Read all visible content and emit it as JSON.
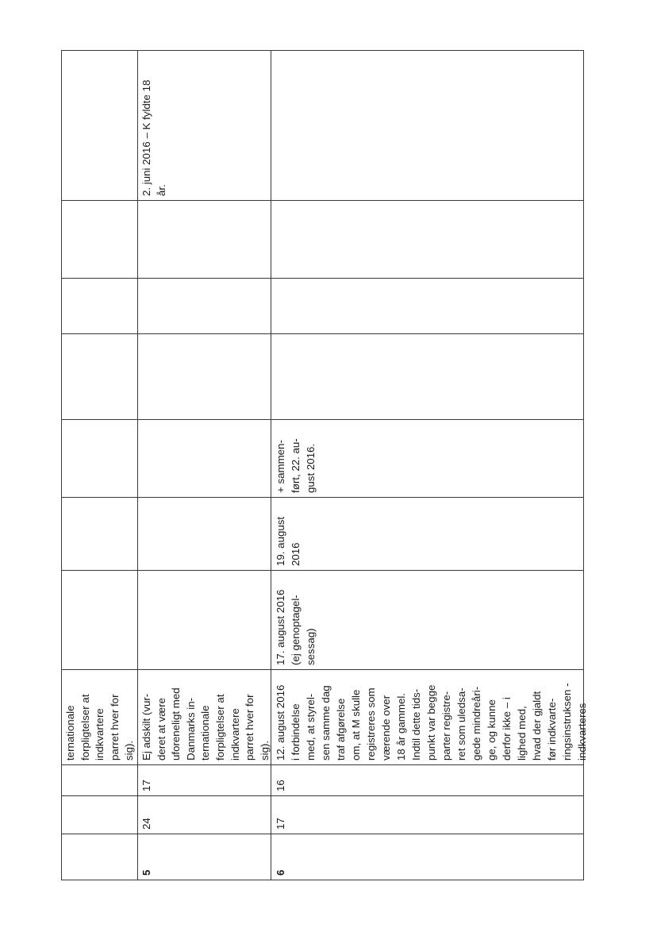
{
  "table": {
    "rows": [
      {
        "cells": [
          {
            "lines": []
          },
          {
            "lines": []
          },
          {
            "lines": []
          },
          {
            "lines": [
              "ternationale",
              "forpligtelser at",
              "indkvartere",
              "parret hver for",
              "sig)."
            ]
          },
          {
            "lines": []
          },
          {
            "lines": []
          },
          {
            "lines": []
          },
          {
            "lines": []
          },
          {
            "lines": []
          },
          {
            "lines": []
          },
          {
            "lines": []
          }
        ]
      },
      {
        "cells": [
          {
            "lines": [
              "5"
            ],
            "bold": true
          },
          {
            "lines": [
              "24"
            ]
          },
          {
            "lines": [
              "17"
            ]
          },
          {
            "lines": [
              "Ej adskilt (vur-",
              "deret at være",
              "uforeneligt med",
              "Danmarks in-",
              "ternationale",
              "forpligtelser at",
              "indkvartere",
              "parret hver for",
              "sig)."
            ]
          },
          {
            "lines": []
          },
          {
            "lines": []
          },
          {
            "lines": []
          },
          {
            "lines": []
          },
          {
            "lines": []
          },
          {
            "lines": []
          },
          {
            "lines": [
              "2. juni 2016 – K fyldte 18",
              "år."
            ]
          }
        ]
      },
      {
        "cells": [
          {
            "lines": [
              "6"
            ],
            "bold": true
          },
          {
            "lines": [
              "17"
            ]
          },
          {
            "lines": [
              "16"
            ]
          },
          {
            "lines": [
              "12. august 2016",
              "i forbindelse",
              "med, at styrel-",
              "sen samme dag",
              "traf afgørelse",
              "om, at M skulle",
              "registreres som",
              "værende over",
              "18 år gammel.",
              "Indtil dette tids-",
              "punkt var begge",
              "parter registre-",
              "ret som uledsa-",
              "gede mindreåri-",
              "ge, og kunne",
              "derfor ikke – i",
              "lighed med,",
              "hvad der gjaldt",
              "før indkvarte-",
              "ringsinstruksen -",
              "indkvarteres"
            ]
          },
          {
            "lines": [
              "17. august 2016",
              "(ej genoptagel-",
              "sessag)"
            ]
          },
          {
            "lines": [
              "19. august",
              "2016"
            ]
          },
          {
            "lines": [
              "+ sammen-",
              "ført, 22. au-",
              "gust 2016."
            ]
          },
          {
            "lines": []
          },
          {
            "lines": []
          },
          {
            "lines": []
          },
          {
            "lines": []
          }
        ]
      }
    ]
  }
}
